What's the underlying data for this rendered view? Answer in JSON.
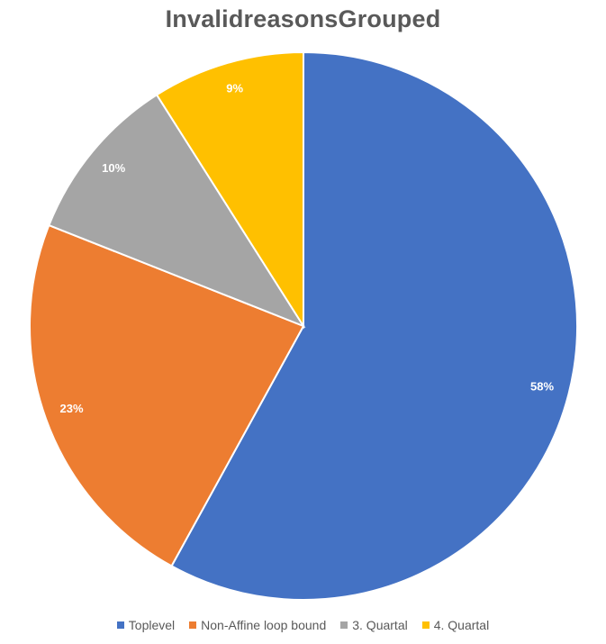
{
  "chart_data": {
    "type": "pie",
    "title": "InvalidreasonsGrouped",
    "categories": [
      "Toplevel",
      "Non-Affine loop bound",
      "3. Quartal",
      "4. Quartal"
    ],
    "values": [
      58,
      23,
      10,
      9
    ],
    "labels": [
      "58%",
      "23%",
      "10%",
      "9%"
    ],
    "colors": [
      "#4472C4",
      "#ED7D31",
      "#A5A5A5",
      "#FFC000"
    ],
    "legend_position": "bottom"
  }
}
